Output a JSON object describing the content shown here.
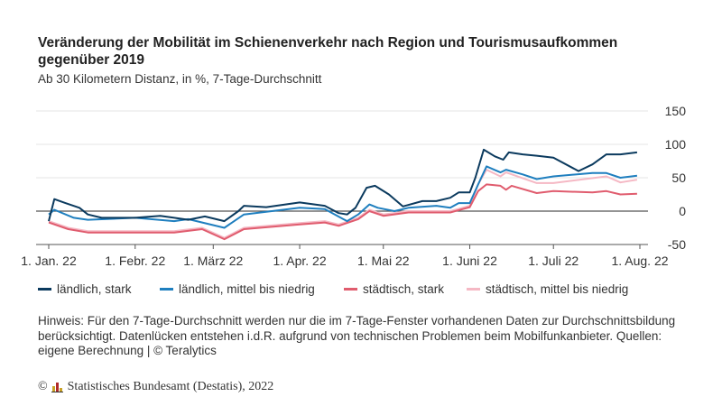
{
  "title": "Veränderung der Mobilität im Schienenverkehr nach Region und Tourismusaufkommen gegenüber 2019",
  "subtitle": "Ab 30 Kilometern Distanz, in %, 7-Tage-Durchschnitt",
  "note": "Hinweis: Für den 7-Tage-Durchschnitt werden nur die im 7-Tage-Fenster vorhandenen Daten zur Durchschnittsbildung berücksichtigt. Datenlücken entstehen i.d.R. aufgrund von technischen Problemen beim Mobilfunkanbieter. Quellen: eigene Berechnung | © Teralytics",
  "footer": {
    "copyright": "©",
    "source": "Statistisches Bundesamt (Destatis), 2022"
  },
  "chart_data": {
    "type": "line",
    "ylim": [
      -50,
      150
    ],
    "yticks": [
      "150",
      "100",
      "50",
      "0",
      "-50"
    ],
    "ytick_values": [
      150,
      100,
      50,
      0,
      -50
    ],
    "xlim": [
      "2022-01-01",
      "2022-08-01"
    ],
    "xticks": [
      {
        "date": "2022-01-01",
        "label": "1. Jan. 22"
      },
      {
        "date": "2022-02-01",
        "label": "1. Febr. 22"
      },
      {
        "date": "2022-03-01",
        "label": "1. März 22"
      },
      {
        "date": "2022-04-01",
        "label": "1. Apr. 22"
      },
      {
        "date": "2022-05-01",
        "label": "1. Mai 22"
      },
      {
        "date": "2022-06-01",
        "label": "1. Juni 22"
      },
      {
        "date": "2022-07-01",
        "label": "1. Juli 22"
      },
      {
        "date": "2022-08-01",
        "label": "1. Aug. 22"
      }
    ],
    "grid": true,
    "legend_position": "bottom",
    "series": [
      {
        "name": "ländlich, stark",
        "color": "#0b3a5e",
        "points": [
          [
            "2022-01-01",
            -15
          ],
          [
            "2022-01-03",
            18
          ],
          [
            "2022-01-07",
            12
          ],
          [
            "2022-01-12",
            5
          ],
          [
            "2022-01-15",
            -5
          ],
          [
            "2022-01-20",
            -10
          ],
          [
            "2022-02-01",
            -10
          ],
          [
            "2022-02-10",
            -7
          ],
          [
            "2022-02-15",
            -10
          ],
          [
            "2022-02-20",
            -13
          ],
          [
            "2022-02-26",
            -8
          ],
          [
            "2022-03-05",
            -15
          ],
          [
            "2022-03-10",
            0
          ],
          [
            "2022-03-12",
            8
          ],
          [
            "2022-03-20",
            6
          ],
          [
            "2022-04-01",
            13
          ],
          [
            "2022-04-10",
            8
          ],
          [
            "2022-04-15",
            -3
          ],
          [
            "2022-04-18",
            -5
          ],
          [
            "2022-04-21",
            5
          ],
          [
            "2022-04-25",
            35
          ],
          [
            "2022-04-28",
            38
          ],
          [
            "2022-05-03",
            25
          ],
          [
            "2022-05-08",
            7
          ],
          [
            "2022-05-15",
            15
          ],
          [
            "2022-05-20",
            15
          ],
          [
            "2022-05-25",
            20
          ],
          [
            "2022-05-28",
            28
          ],
          [
            "2022-06-01",
            28
          ],
          [
            "2022-06-03",
            50
          ],
          [
            "2022-06-06",
            92
          ],
          [
            "2022-06-10",
            82
          ],
          [
            "2022-06-13",
            77
          ],
          [
            "2022-06-15",
            88
          ],
          [
            "2022-06-20",
            85
          ],
          [
            "2022-06-25",
            83
          ],
          [
            "2022-07-01",
            80
          ],
          [
            "2022-07-10",
            60
          ],
          [
            "2022-07-15",
            70
          ],
          [
            "2022-07-20",
            85
          ],
          [
            "2022-07-25",
            85
          ],
          [
            "2022-07-31",
            88
          ]
        ]
      },
      {
        "name": "ländlich, mittel bis niedrig",
        "color": "#1f7fbf",
        "points": [
          [
            "2022-01-01",
            -5
          ],
          [
            "2022-01-03",
            2
          ],
          [
            "2022-01-10",
            -10
          ],
          [
            "2022-01-15",
            -13
          ],
          [
            "2022-02-01",
            -10
          ],
          [
            "2022-02-15",
            -15
          ],
          [
            "2022-02-20",
            -12
          ],
          [
            "2022-03-05",
            -25
          ],
          [
            "2022-03-12",
            -5
          ],
          [
            "2022-04-01",
            5
          ],
          [
            "2022-04-10",
            3
          ],
          [
            "2022-04-18",
            -15
          ],
          [
            "2022-04-22",
            -5
          ],
          [
            "2022-04-26",
            10
          ],
          [
            "2022-04-29",
            5
          ],
          [
            "2022-05-05",
            0
          ],
          [
            "2022-05-10",
            5
          ],
          [
            "2022-05-20",
            8
          ],
          [
            "2022-05-25",
            5
          ],
          [
            "2022-05-28",
            12
          ],
          [
            "2022-06-01",
            12
          ],
          [
            "2022-06-04",
            40
          ],
          [
            "2022-06-07",
            67
          ],
          [
            "2022-06-12",
            58
          ],
          [
            "2022-06-14",
            62
          ],
          [
            "2022-06-20",
            55
          ],
          [
            "2022-06-25",
            48
          ],
          [
            "2022-07-01",
            52
          ],
          [
            "2022-07-15",
            57
          ],
          [
            "2022-07-20",
            57
          ],
          [
            "2022-07-25",
            50
          ],
          [
            "2022-07-31",
            53
          ]
        ]
      },
      {
        "name": "städtisch, stark",
        "color": "#e05c6e",
        "points": [
          [
            "2022-01-01",
            -17
          ],
          [
            "2022-01-08",
            -27
          ],
          [
            "2022-01-15",
            -32
          ],
          [
            "2022-02-15",
            -32
          ],
          [
            "2022-02-25",
            -27
          ],
          [
            "2022-03-05",
            -42
          ],
          [
            "2022-03-12",
            -27
          ],
          [
            "2022-04-01",
            -20
          ],
          [
            "2022-04-10",
            -17
          ],
          [
            "2022-04-15",
            -22
          ],
          [
            "2022-04-22",
            -12
          ],
          [
            "2022-04-26",
            0
          ],
          [
            "2022-05-01",
            -7
          ],
          [
            "2022-05-10",
            -2
          ],
          [
            "2022-05-25",
            -2
          ],
          [
            "2022-06-01",
            6
          ],
          [
            "2022-06-04",
            30
          ],
          [
            "2022-06-07",
            40
          ],
          [
            "2022-06-12",
            38
          ],
          [
            "2022-06-14",
            32
          ],
          [
            "2022-06-16",
            38
          ],
          [
            "2022-06-25",
            27
          ],
          [
            "2022-07-01",
            30
          ],
          [
            "2022-07-15",
            28
          ],
          [
            "2022-07-20",
            30
          ],
          [
            "2022-07-25",
            25
          ],
          [
            "2022-07-31",
            26
          ]
        ]
      },
      {
        "name": "städtisch, mittel bis niedrig",
        "color": "#f5b8c4",
        "points": [
          [
            "2022-01-01",
            -15
          ],
          [
            "2022-01-08",
            -25
          ],
          [
            "2022-01-15",
            -30
          ],
          [
            "2022-02-15",
            -30
          ],
          [
            "2022-02-25",
            -25
          ],
          [
            "2022-03-05",
            -40
          ],
          [
            "2022-03-12",
            -25
          ],
          [
            "2022-04-01",
            -18
          ],
          [
            "2022-04-10",
            -15
          ],
          [
            "2022-04-15",
            -20
          ],
          [
            "2022-04-22",
            -10
          ],
          [
            "2022-04-26",
            2
          ],
          [
            "2022-05-01",
            -5
          ],
          [
            "2022-05-10",
            0
          ],
          [
            "2022-05-25",
            0
          ],
          [
            "2022-06-01",
            8
          ],
          [
            "2022-06-04",
            40
          ],
          [
            "2022-06-07",
            62
          ],
          [
            "2022-06-12",
            52
          ],
          [
            "2022-06-14",
            58
          ],
          [
            "2022-06-25",
            42
          ],
          [
            "2022-07-01",
            42
          ],
          [
            "2022-07-20",
            52
          ],
          [
            "2022-07-25",
            43
          ],
          [
            "2022-07-31",
            47
          ]
        ]
      }
    ]
  }
}
